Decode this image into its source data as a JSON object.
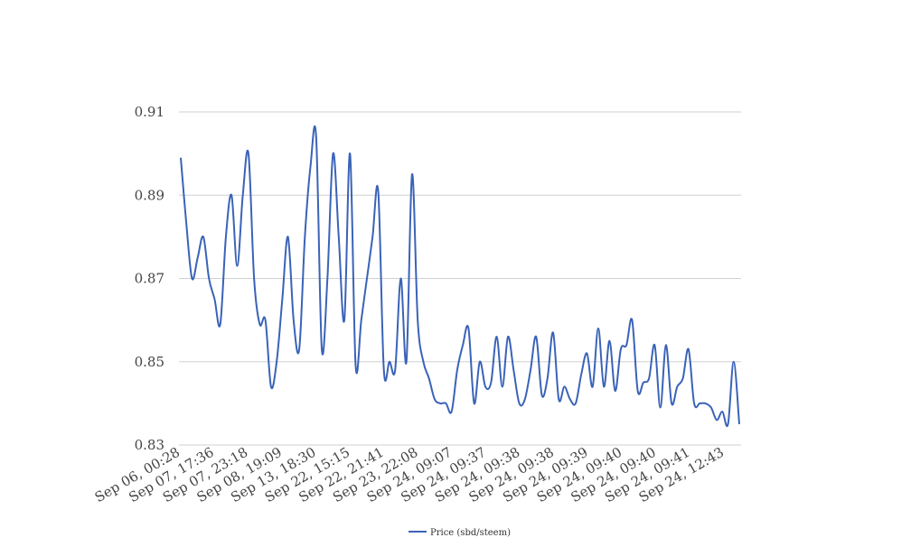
{
  "chart_data": {
    "type": "line",
    "title": "",
    "xlabel": "",
    "ylabel": "",
    "ylim": [
      0.83,
      0.91
    ],
    "yticks": [
      "0.83",
      "0.85",
      "0.87",
      "0.89",
      "0.91"
    ],
    "grid": true,
    "legend_position": "bottom-center",
    "x_tick_labels": [
      "Sep 06, 00:28",
      "Sep 07, 17:36",
      "Sep 07, 23:18",
      "Sep 08, 19:09",
      "Sep 13, 18:30",
      "Sep 22, 15:15",
      "Sep 22, 21:41",
      "Sep 23, 22:08",
      "Sep 24, 09:07",
      "Sep 24, 09:37",
      "Sep 24, 09:38",
      "Sep 24, 09:38",
      "Sep 24, 09:39",
      "Sep 24, 09:40",
      "Sep 24, 09:40",
      "Sep 24, 09:41",
      "Sep 24, 12:43"
    ],
    "series": [
      {
        "name": "Price (sbd/steem)",
        "color": "#3a63b8",
        "values": [
          0.899,
          0.883,
          0.87,
          0.875,
          0.88,
          0.87,
          0.865,
          0.859,
          0.88,
          0.89,
          0.873,
          0.89,
          0.9,
          0.87,
          0.859,
          0.86,
          0.844,
          0.85,
          0.865,
          0.88,
          0.86,
          0.853,
          0.88,
          0.897,
          0.904,
          0.853,
          0.87,
          0.9,
          0.88,
          0.86,
          0.9,
          0.849,
          0.86,
          0.87,
          0.88,
          0.891,
          0.848,
          0.85,
          0.848,
          0.87,
          0.85,
          0.895,
          0.86,
          0.85,
          0.846,
          0.841,
          0.84,
          0.84,
          0.838,
          0.848,
          0.854,
          0.858,
          0.84,
          0.85,
          0.844,
          0.845,
          0.856,
          0.844,
          0.856,
          0.848,
          0.84,
          0.841,
          0.848,
          0.856,
          0.842,
          0.846,
          0.857,
          0.841,
          0.844,
          0.841,
          0.84,
          0.847,
          0.852,
          0.844,
          0.858,
          0.844,
          0.855,
          0.843,
          0.853,
          0.854,
          0.86,
          0.843,
          0.845,
          0.846,
          0.854,
          0.839,
          0.854,
          0.84,
          0.844,
          0.846,
          0.853,
          0.84,
          0.84,
          0.84,
          0.839,
          0.836,
          0.838,
          0.835,
          0.85,
          0.835
        ]
      }
    ]
  }
}
